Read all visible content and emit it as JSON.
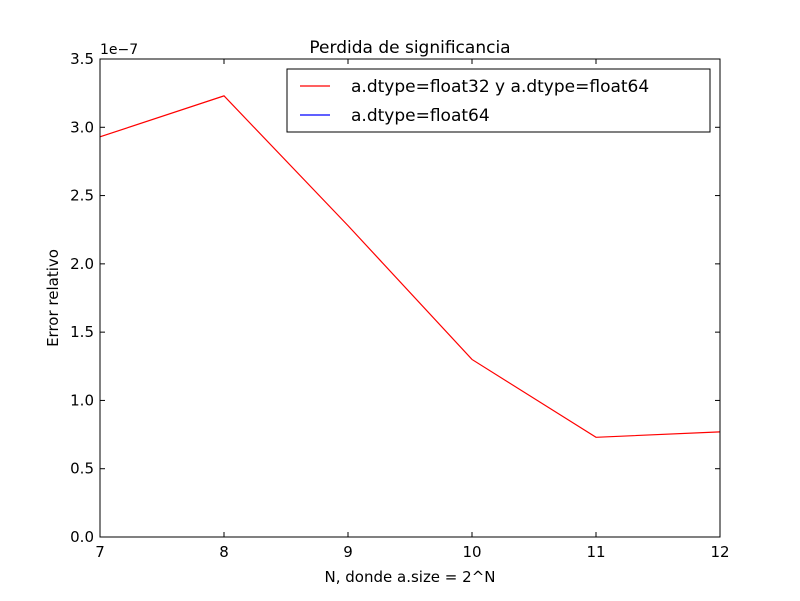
{
  "chart_data": {
    "type": "line",
    "title": "Perdida de significancia",
    "xlabel": "N, donde a.size = 2^N",
    "ylabel": "Error relativo",
    "y_offset_label": "1e−7",
    "xlim": [
      7,
      12
    ],
    "ylim": [
      0.0,
      3.5
    ],
    "x_ticks": [
      "7",
      "8",
      "9",
      "10",
      "11",
      "12"
    ],
    "y_ticks": [
      "0.0",
      "0.5",
      "1.0",
      "1.5",
      "2.0",
      "2.5",
      "3.0",
      "3.5"
    ],
    "grid": false,
    "legend_position": "top-right",
    "series": [
      {
        "name": "a.dtype=float32 y a.dtype=float64",
        "color": "#ff0000",
        "x": [
          7,
          8,
          9,
          10,
          11,
          12
        ],
        "y": [
          2.93,
          3.23,
          2.28,
          1.3,
          0.73,
          0.77
        ]
      },
      {
        "name": "a.dtype=float64",
        "color": "#0000ff",
        "x": [],
        "y": []
      }
    ]
  }
}
